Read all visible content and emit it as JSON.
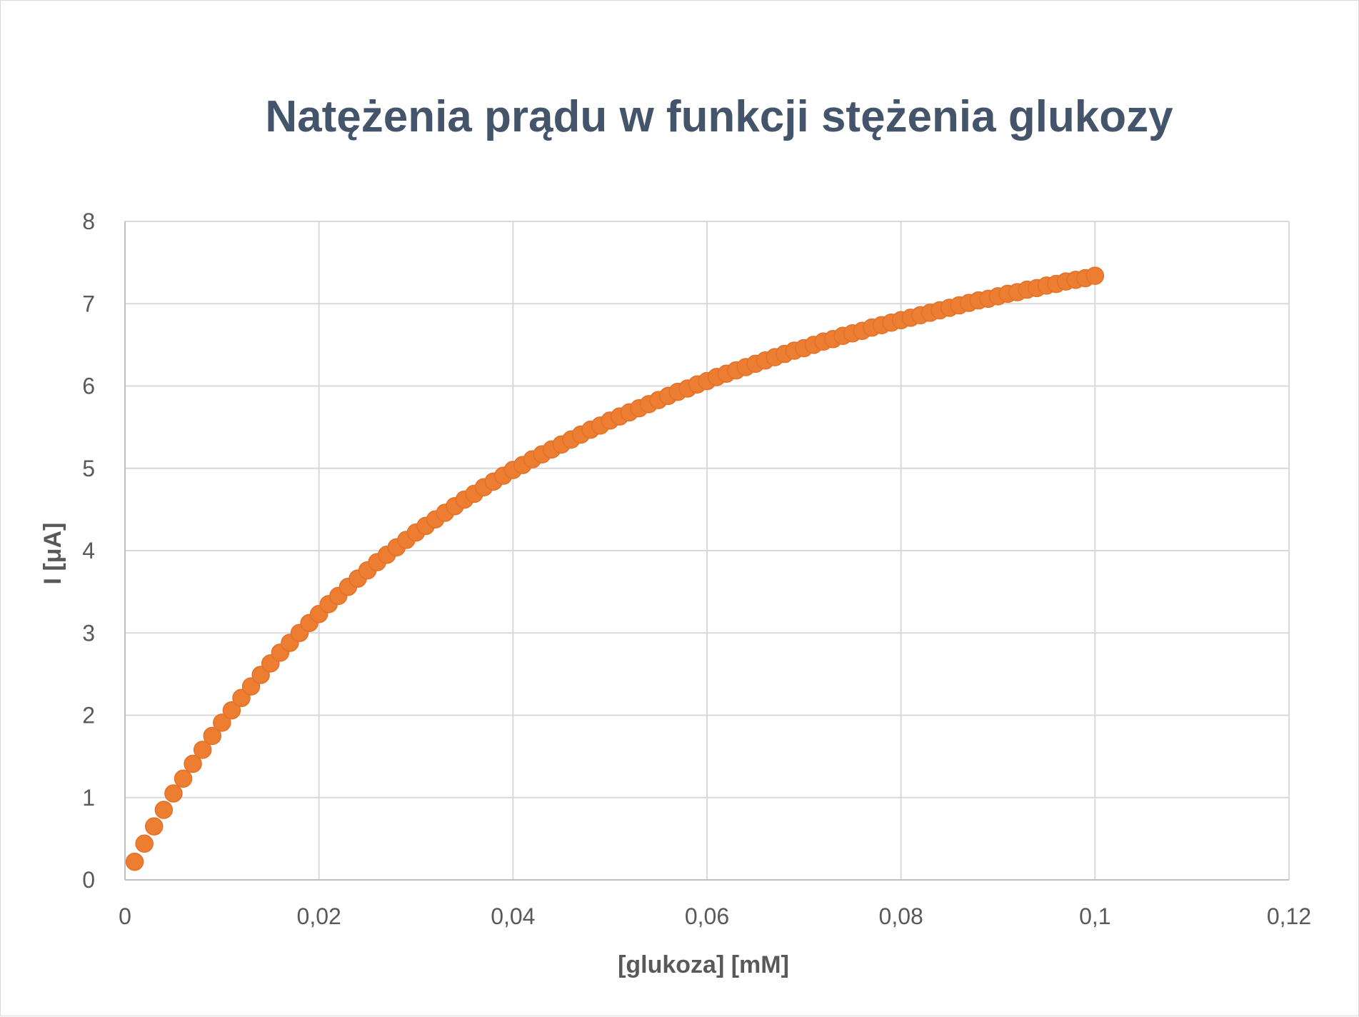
{
  "chart_data": {
    "type": "scatter",
    "title": "Natężenia prądu w funkcji stężenia glukozy",
    "xlabel": "[glukoza] [mM]",
    "ylabel": "I [μA]",
    "xlim": [
      0,
      0.12
    ],
    "ylim": [
      0,
      8
    ],
    "x_ticks": [
      "0",
      "0,02",
      "0,04",
      "0,06",
      "0,08",
      "0,1",
      "0,12"
    ],
    "y_ticks": [
      "0",
      "1",
      "2",
      "3",
      "4",
      "5",
      "6",
      "7",
      "8"
    ],
    "grid": true,
    "legend": "none",
    "marker_color": "#ed7d31",
    "series": [
      {
        "x": [
          0.001,
          0.002,
          0.003,
          0.004,
          0.005,
          0.006,
          0.007,
          0.008,
          0.009,
          0.01,
          0.011,
          0.012,
          0.013,
          0.014,
          0.015,
          0.016,
          0.017,
          0.018,
          0.019,
          0.02,
          0.021,
          0.022,
          0.023,
          0.024,
          0.025,
          0.026,
          0.027,
          0.028,
          0.029,
          0.03,
          0.031,
          0.032,
          0.033,
          0.034,
          0.035,
          0.036,
          0.037,
          0.038,
          0.039,
          0.04,
          0.041,
          0.042,
          0.043,
          0.044,
          0.045,
          0.046,
          0.047,
          0.048,
          0.049,
          0.05,
          0.051,
          0.052,
          0.053,
          0.054,
          0.055,
          0.056,
          0.057,
          0.058,
          0.059,
          0.06,
          0.061,
          0.062,
          0.063,
          0.064,
          0.065,
          0.066,
          0.067,
          0.068,
          0.069,
          0.07,
          0.071,
          0.072,
          0.073,
          0.074,
          0.075,
          0.076,
          0.077,
          0.078,
          0.079,
          0.08,
          0.081,
          0.082,
          0.083,
          0.084,
          0.085,
          0.086,
          0.087,
          0.088,
          0.089,
          0.09,
          0.091,
          0.092,
          0.093,
          0.094,
          0.095,
          0.096,
          0.097,
          0.098,
          0.099,
          0.1
        ],
        "y": [
          0.22,
          0.44,
          0.65,
          0.85,
          1.05,
          1.23,
          1.41,
          1.58,
          1.75,
          1.91,
          2.06,
          2.21,
          2.35,
          2.49,
          2.63,
          2.76,
          2.88,
          3.0,
          3.12,
          3.23,
          3.35,
          3.45,
          3.56,
          3.66,
          3.76,
          3.86,
          3.95,
          4.04,
          4.13,
          4.22,
          4.3,
          4.38,
          4.46,
          4.54,
          4.62,
          4.69,
          4.77,
          4.84,
          4.91,
          4.98,
          5.04,
          5.11,
          5.17,
          5.23,
          5.29,
          5.35,
          5.41,
          5.47,
          5.52,
          5.58,
          5.63,
          5.68,
          5.73,
          5.78,
          5.83,
          5.88,
          5.93,
          5.97,
          6.02,
          6.06,
          6.11,
          6.15,
          6.19,
          6.23,
          6.27,
          6.31,
          6.35,
          6.39,
          6.43,
          6.46,
          6.5,
          6.54,
          6.57,
          6.61,
          6.64,
          6.67,
          6.71,
          6.74,
          6.77,
          6.8,
          6.83,
          6.86,
          6.89,
          6.92,
          6.95,
          6.98,
          7.01,
          7.04,
          7.06,
          7.09,
          7.12,
          7.14,
          7.17,
          7.19,
          7.22,
          7.24,
          7.27,
          7.29,
          7.31,
          7.34
        ]
      }
    ]
  }
}
